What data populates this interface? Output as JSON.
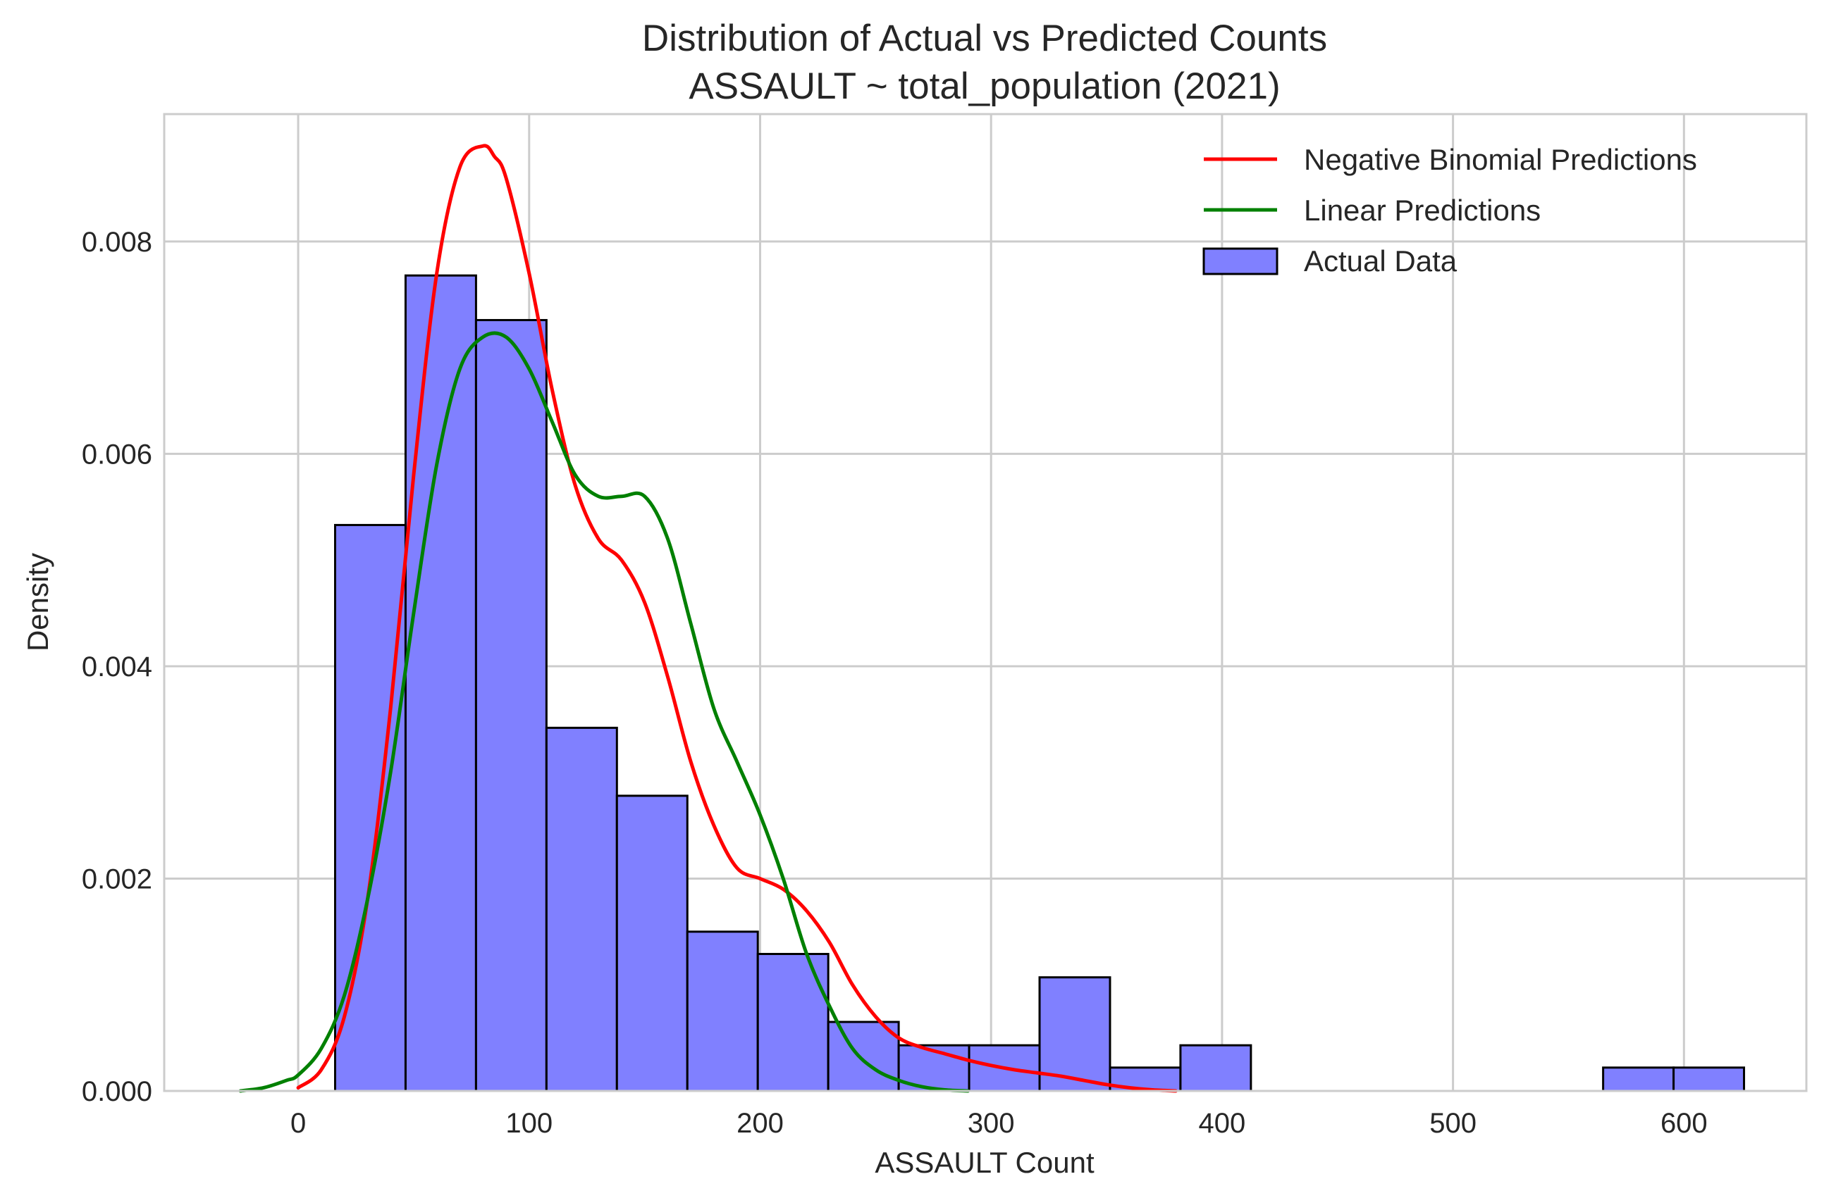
{
  "chart_data": {
    "type": "histogram",
    "title_line1": "Distribution of Actual vs Predicted Counts",
    "title_line2": "ASSAULT ~ total_population (2021)",
    "xlabel": "ASSAULT Count",
    "ylabel": "Density",
    "xlim": [
      -58,
      653
    ],
    "ylim": [
      0,
      0.0092
    ],
    "grid": true,
    "legend_position": "top-right",
    "x_ticks": [
      0,
      100,
      200,
      300,
      400,
      500,
      600
    ],
    "y_ticks": [
      0,
      0.002,
      0.004,
      0.006,
      0.008
    ],
    "x_tick_labels": [
      "0",
      "100",
      "200",
      "300",
      "400",
      "500",
      "600"
    ],
    "y_tick_labels": [
      "0.000",
      "0.002",
      "0.004",
      "0.006",
      "0.008"
    ],
    "histogram": {
      "name": "Actual Data",
      "color": "#8080ff",
      "edge_color": "#000000",
      "bin_edges": [
        16,
        46.5,
        77,
        107.5,
        138,
        168.5,
        199,
        229.5,
        260,
        290.5,
        321,
        351.5,
        382,
        412.5,
        443,
        473.5,
        504,
        534.5,
        565,
        595.5,
        626
      ],
      "densities": [
        0.00533,
        0.00768,
        0.00726,
        0.00342,
        0.00278,
        0.0015,
        0.00129,
        0.00065,
        0.00043,
        0.00043,
        0.00107,
        0.00022,
        0.00043,
        0,
        0,
        0,
        0,
        0,
        0.00022,
        0.00022
      ]
    },
    "series": [
      {
        "name": "Negative Binomial Predictions",
        "color": "#ff0000",
        "x": [
          0,
          10,
          20,
          30,
          40,
          50,
          60,
          70,
          80,
          85,
          90,
          100,
          110,
          120,
          130,
          140,
          150,
          160,
          170,
          180,
          190,
          200,
          210,
          220,
          230,
          240,
          250,
          260,
          270,
          280,
          290,
          300,
          310,
          320,
          330,
          340,
          350,
          360,
          370,
          380
        ],
        "y": [
          3e-05,
          0.0002,
          0.0007,
          0.0018,
          0.0036,
          0.0058,
          0.0077,
          0.0087,
          0.0089,
          0.0088,
          0.0086,
          0.0077,
          0.0066,
          0.0057,
          0.0052,
          0.005,
          0.0046,
          0.0039,
          0.0031,
          0.0025,
          0.0021,
          0.002,
          0.0019,
          0.0017,
          0.0014,
          0.001,
          0.0007,
          0.0005,
          0.00041,
          0.00035,
          0.00029,
          0.00024,
          0.0002,
          0.00017,
          0.00014,
          0.0001,
          6e-05,
          3e-05,
          1e-05,
          0
        ]
      },
      {
        "name": "Linear Predictions",
        "color": "#008000",
        "x": [
          -25,
          -15,
          -5,
          0,
          10,
          20,
          30,
          40,
          50,
          60,
          70,
          80,
          90,
          100,
          110,
          120,
          130,
          140,
          150,
          160,
          170,
          180,
          190,
          200,
          210,
          220,
          230,
          240,
          250,
          260,
          270,
          280,
          290
        ],
        "y": [
          0,
          3e-05,
          0.0001,
          0.00015,
          0.0004,
          0.0009,
          0.0018,
          0.003,
          0.0045,
          0.0059,
          0.0068,
          0.0071,
          0.0071,
          0.0068,
          0.0063,
          0.0058,
          0.0056,
          0.0056,
          0.0056,
          0.0052,
          0.0044,
          0.0036,
          0.0031,
          0.0026,
          0.002,
          0.0013,
          0.0008,
          0.0004,
          0.0002,
          0.0001,
          4e-05,
          1e-05,
          0
        ]
      }
    ],
    "legend_entries": [
      "Negative Binomial Predictions",
      "Linear Predictions",
      "Actual Data"
    ]
  }
}
